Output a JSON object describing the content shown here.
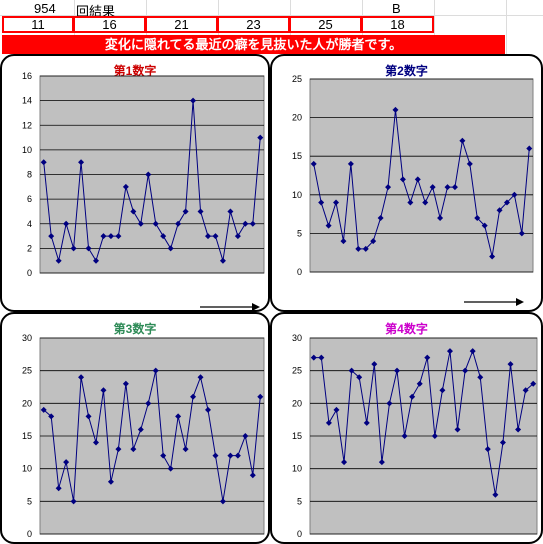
{
  "header": {
    "draw_number": "954",
    "result_label": "回結果",
    "bonus_label": "B"
  },
  "winning_numbers": [
    "11",
    "16",
    "21",
    "23",
    "25",
    "18"
  ],
  "banner": {
    "text": "変化に隠れてる最近の癖を見抜いた人が勝者です。"
  },
  "colors": {
    "banner_bg": "#ff0000",
    "chart1_title": "#cc0000",
    "chart2_title": "#000080",
    "chart3_title": "#2e8b57",
    "chart4_title": "#cc00cc",
    "line": "#000080",
    "plot_bg": "#c0c0c0"
  },
  "chart_data": [
    {
      "type": "line",
      "title": "第1数字",
      "ylim": [
        0,
        16
      ],
      "yticks": [
        "0",
        "2",
        "4",
        "6",
        "8",
        "10",
        "12",
        "14",
        "16"
      ],
      "grid": true,
      "values": [
        9,
        3,
        1,
        4,
        2,
        9,
        2,
        1,
        3,
        3,
        3,
        7,
        5,
        4,
        8,
        4,
        3,
        2,
        4,
        5,
        14,
        5,
        3,
        3,
        1,
        5,
        3,
        4,
        4,
        11
      ]
    },
    {
      "type": "line",
      "title": "第2数字",
      "ylim": [
        0,
        25
      ],
      "yticks": [
        "0",
        "5",
        "10",
        "15",
        "20",
        "25"
      ],
      "grid": true,
      "values": [
        14,
        9,
        6,
        9,
        4,
        14,
        3,
        3,
        4,
        7,
        11,
        21,
        12,
        9,
        12,
        9,
        11,
        7,
        11,
        11,
        17,
        14,
        7,
        6,
        2,
        8,
        9,
        10,
        5,
        16
      ]
    },
    {
      "type": "line",
      "title": "第3数字",
      "ylim": [
        0,
        30
      ],
      "yticks": [
        "0",
        "5",
        "10",
        "15",
        "20",
        "25",
        "30"
      ],
      "grid": true,
      "values": [
        19,
        18,
        7,
        11,
        5,
        24,
        18,
        14,
        22,
        8,
        13,
        23,
        13,
        16,
        20,
        25,
        12,
        10,
        18,
        13,
        21,
        24,
        19,
        12,
        5,
        12,
        12,
        15,
        9,
        21
      ]
    },
    {
      "type": "line",
      "title": "第4数字",
      "ylim": [
        0,
        30
      ],
      "yticks": [
        "0",
        "5",
        "10",
        "15",
        "20",
        "25",
        "30"
      ],
      "grid": true,
      "values": [
        27,
        27,
        17,
        19,
        11,
        25,
        24,
        17,
        26,
        11,
        20,
        25,
        15,
        21,
        23,
        27,
        15,
        22,
        28,
        16,
        25,
        28,
        24,
        13,
        6,
        14,
        26,
        16,
        22,
        23
      ]
    }
  ]
}
